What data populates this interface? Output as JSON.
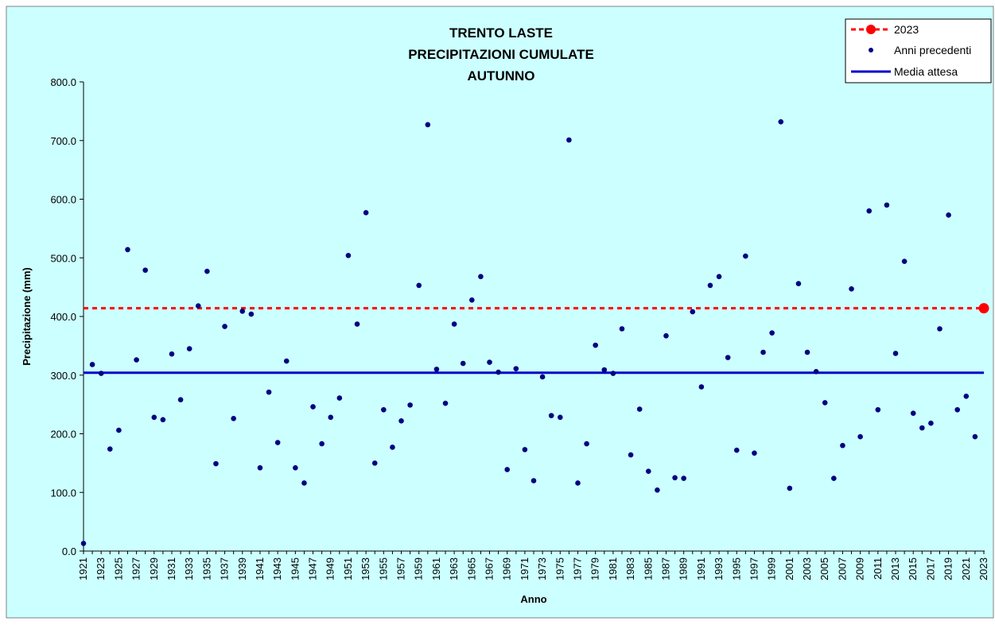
{
  "chart_data": {
    "type": "scatter",
    "title": [
      "TRENTO LASTE",
      "PRECIPITAZIONI CUMULATE",
      "AUTUNNO"
    ],
    "xlabel": "Anno",
    "ylabel": "Precipitazione (mm)",
    "ylim": [
      0,
      800
    ],
    "yticks": [
      "0.0",
      "100.0",
      "200.0",
      "300.0",
      "400.0",
      "500.0",
      "600.0",
      "700.0",
      "800.0"
    ],
    "xlim": [
      1921,
      2023
    ],
    "xticks": [
      "1921",
      "1923",
      "1925",
      "1927",
      "1929",
      "1931",
      "1933",
      "1935",
      "1937",
      "1939",
      "1941",
      "1943",
      "1945",
      "1947",
      "1949",
      "1951",
      "1953",
      "1955",
      "1957",
      "1959",
      "1961",
      "1963",
      "1965",
      "1967",
      "1969",
      "1971",
      "1973",
      "1975",
      "1977",
      "1979",
      "1981",
      "1983",
      "1985",
      "1987",
      "1989",
      "1991",
      "1993",
      "1995",
      "1997",
      "1999",
      "2001",
      "2003",
      "2005",
      "2007",
      "2009",
      "2011",
      "2013",
      "2015",
      "2017",
      "2019",
      "2021",
      "2023"
    ],
    "grid": false,
    "legend_position": "top-right",
    "colors": {
      "background": "#ccffff",
      "previous": "#000080",
      "current": "#ff0000",
      "mean": "#0000cc"
    },
    "series": [
      {
        "name": "Anni precedenti",
        "type": "scatter",
        "x": [
          1921,
          1922,
          1923,
          1924,
          1925,
          1926,
          1927,
          1928,
          1929,
          1930,
          1931,
          1932,
          1933,
          1934,
          1935,
          1936,
          1937,
          1938,
          1939,
          1940,
          1941,
          1942,
          1943,
          1944,
          1945,
          1946,
          1947,
          1948,
          1949,
          1950,
          1951,
          1952,
          1953,
          1954,
          1955,
          1956,
          1957,
          1958,
          1959,
          1960,
          1961,
          1962,
          1963,
          1964,
          1965,
          1966,
          1967,
          1968,
          1969,
          1970,
          1971,
          1972,
          1973,
          1974,
          1975,
          1976,
          1977,
          1978,
          1979,
          1980,
          1981,
          1982,
          1983,
          1984,
          1985,
          1986,
          1987,
          1988,
          1989,
          1990,
          1991,
          1992,
          1993,
          1994,
          1995,
          1996,
          1997,
          1998,
          1999,
          2000,
          2001,
          2002,
          2003,
          2004,
          2005,
          2006,
          2007,
          2008,
          2009,
          2010,
          2011,
          2012,
          2013,
          2014,
          2015,
          2016,
          2017,
          2018,
          2019,
          2020,
          2021,
          2022
        ],
        "y": [
          13,
          318,
          303,
          174,
          206,
          514,
          326,
          479,
          228,
          224,
          336,
          258,
          345,
          418,
          477,
          149,
          383,
          226,
          409,
          404,
          142,
          271,
          185,
          324,
          142,
          116,
          246,
          183,
          228,
          261,
          504,
          387,
          577,
          150,
          241,
          177,
          222,
          249,
          453,
          727,
          310,
          252,
          387,
          320,
          428,
          468,
          322,
          305,
          139,
          311,
          173,
          120,
          297,
          231,
          228,
          701,
          116,
          183,
          351,
          309,
          303,
          379,
          164,
          242,
          136,
          104,
          367,
          125,
          124,
          408,
          280,
          453,
          468,
          330,
          172,
          503,
          167,
          339,
          372,
          732,
          107,
          456,
          339,
          306,
          253,
          124,
          180,
          447,
          195,
          580,
          241,
          590,
          337,
          494,
          235,
          210,
          218,
          379,
          573,
          241,
          264,
          195
        ]
      },
      {
        "name": "2023",
        "type": "point-with-reference-line",
        "x": [
          2023
        ],
        "y": [
          414
        ]
      },
      {
        "name": "Media attesa",
        "type": "horizontal-line",
        "y": 304
      }
    ]
  }
}
